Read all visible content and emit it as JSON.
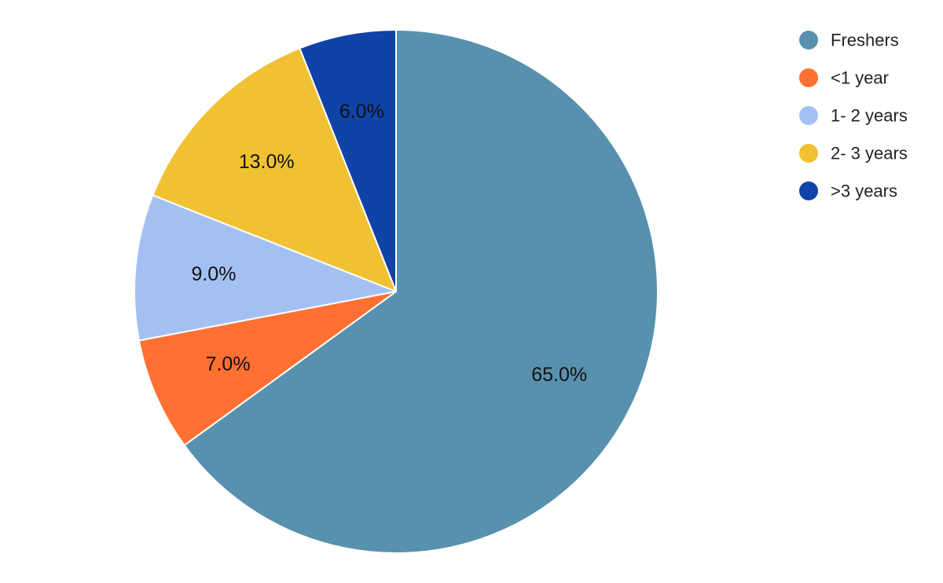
{
  "chart_data": {
    "type": "pie",
    "start_angle_deg": 0,
    "direction": "clockwise",
    "legend_position": "top-right",
    "slices": [
      {
        "label": "Freshers",
        "value": 65.0,
        "display": "65.0%",
        "color": "#5891AD"
      },
      {
        "label": "<1 year",
        "value": 7.0,
        "display": "7.0%",
        "color": "#FF7033"
      },
      {
        "label": "1- 2 years",
        "value": 9.0,
        "display": "9.0%",
        "color": "#A4C0F3"
      },
      {
        "label": "2- 3 years",
        "value": 13.0,
        "display": "13.0%",
        "color": "#F0C233"
      },
      {
        "label": ">3 years",
        "value": 6.0,
        "display": "6.0%",
        "color": "#1043A8"
      }
    ]
  }
}
